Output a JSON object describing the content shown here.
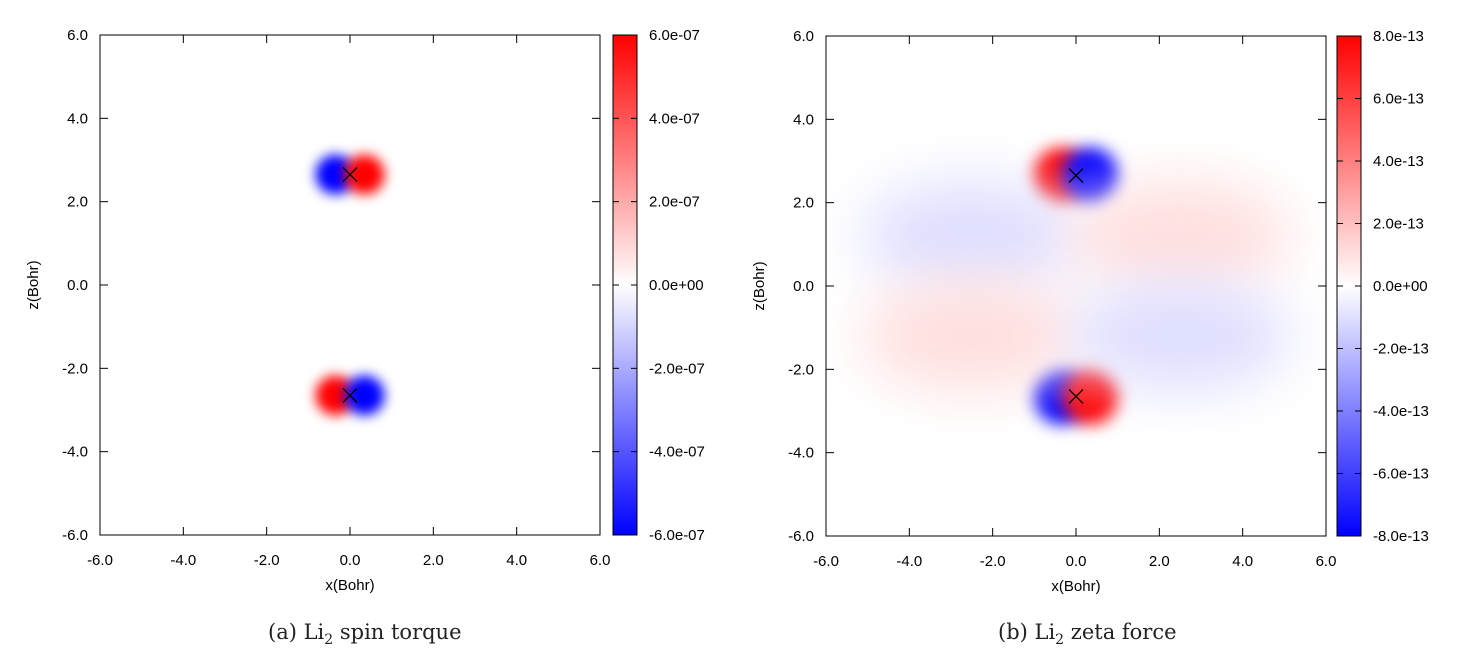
{
  "chart_data": [
    {
      "type": "heatmap",
      "panel": "(a)",
      "quantity": "spin torque",
      "xlabel": "x(Bohr)",
      "ylabel": "z(Bohr)",
      "xlim": [
        -6.0,
        6.0
      ],
      "ylim": [
        -6.0,
        6.0
      ],
      "xticks": [
        "-6.0",
        "-4.0",
        "-2.0",
        "0.0",
        "2.0",
        "4.0",
        "6.0"
      ],
      "yticks": [
        "-6.0",
        "-4.0",
        "-2.0",
        "0.0",
        "2.0",
        "4.0",
        "6.0"
      ],
      "colorbar": {
        "min": -6e-07,
        "max": 6e-07,
        "ticks": [
          "-6.0e-07",
          "-4.0e-07",
          "-2.0e-07",
          "0.0e+00",
          "2.0e-07",
          "4.0e-07",
          "6.0e-07"
        ],
        "colors": [
          "#0000ff",
          "#ffffff",
          "#ff0000"
        ]
      },
      "atoms": [
        {
          "x": 0.0,
          "z": 2.65
        },
        {
          "x": 0.0,
          "z": -2.65
        }
      ],
      "lobes": [
        {
          "x": -0.35,
          "z": 2.65,
          "value": -6e-07
        },
        {
          "x": 0.35,
          "z": 2.65,
          "value": 6e-07
        },
        {
          "x": -0.35,
          "z": -2.65,
          "value": 6e-07
        },
        {
          "x": 0.35,
          "z": -2.65,
          "value": -6e-07
        }
      ]
    },
    {
      "type": "heatmap",
      "panel": "(b)",
      "quantity": "zeta force",
      "xlabel": "x(Bohr)",
      "ylabel": "z(Bohr)",
      "xlim": [
        -6.0,
        6.0
      ],
      "ylim": [
        -6.0,
        6.0
      ],
      "xticks": [
        "-6.0",
        "-4.0",
        "-2.0",
        "0.0",
        "2.0",
        "4.0",
        "6.0"
      ],
      "yticks": [
        "-6.0",
        "-4.0",
        "-2.0",
        "0.0",
        "2.0",
        "4.0",
        "6.0"
      ],
      "colorbar": {
        "min": -8e-13,
        "max": 8e-13,
        "ticks": [
          "-8.0e-13",
          "-6.0e-13",
          "-4.0e-13",
          "-2.0e-13",
          "0.0e+00",
          "2.0e-13",
          "4.0e-13",
          "6.0e-13",
          "8.0e-13"
        ],
        "colors": [
          "#0000ff",
          "#ffffff",
          "#ff0000"
        ]
      },
      "atoms": [
        {
          "x": 0.0,
          "z": 2.65
        },
        {
          "x": 0.0,
          "z": -2.65
        }
      ],
      "lobes": [
        {
          "x": -0.35,
          "z": 2.65,
          "value": 8e-13
        },
        {
          "x": 0.35,
          "z": 2.65,
          "value": -8e-13
        },
        {
          "x": -0.35,
          "z": -2.65,
          "value": -8e-13
        },
        {
          "x": 0.35,
          "z": -2.65,
          "value": 8e-13
        },
        {
          "x": -2.5,
          "z": 1.2,
          "value": -1e-13
        },
        {
          "x": 2.5,
          "z": 1.2,
          "value": 1e-13
        },
        {
          "x": -2.5,
          "z": -1.2,
          "value": 1e-13
        },
        {
          "x": 2.5,
          "z": -1.2,
          "value": -1e-13
        }
      ]
    }
  ],
  "captions": {
    "a": {
      "label": "(a) Li",
      "sub": "2",
      "rest": " spin torque"
    },
    "b": {
      "label": "(b) Li",
      "sub": "2",
      "rest": " zeta force"
    }
  }
}
